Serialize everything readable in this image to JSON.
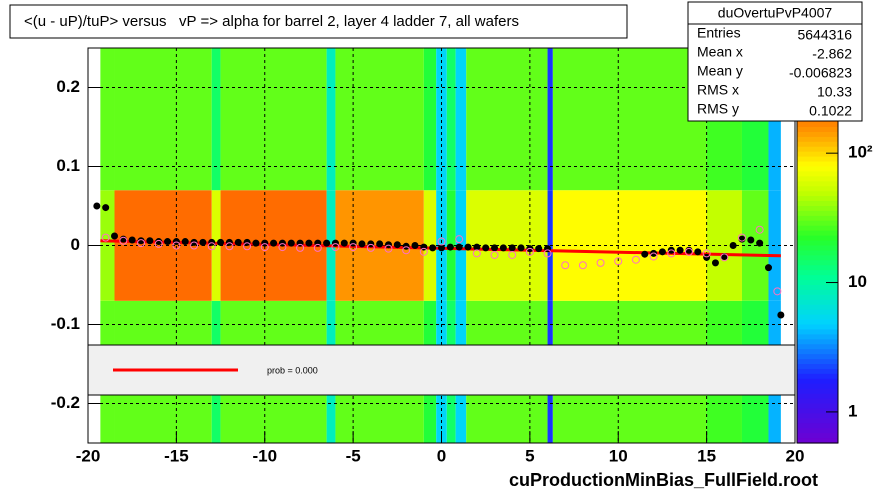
{
  "chart_data": {
    "type": "heatmap",
    "title": "<(u - uP)/tuP> versus   vP => alpha for barrel 2, layer 4 ladder 7, all wafers",
    "x_label": "cuProductionMinBias_FullField.root",
    "xlim": [
      -20,
      20
    ],
    "ylim": [
      -0.25,
      0.25
    ],
    "xticks": [
      -20,
      -15,
      -10,
      -5,
      0,
      5,
      10,
      15,
      20
    ],
    "yticks": [
      -0.2,
      -0.1,
      0,
      0.1,
      0.2
    ],
    "grid": true,
    "heatmap": {
      "x_edges": [
        -19.3,
        -18.5,
        -13,
        -12.5,
        -6.5,
        -6,
        -1,
        -0.3,
        0.3,
        0.8,
        1.4,
        6,
        6.3,
        15,
        17,
        18.5,
        19.2
      ],
      "y_edges": [
        -0.25,
        -0.07,
        0.07,
        0.25
      ],
      "counts": [
        [
          30,
          40,
          30
        ],
        [
          30,
          200,
          30
        ],
        [
          15,
          60,
          15
        ],
        [
          30,
          200,
          30
        ],
        [
          8,
          8,
          8
        ],
        [
          30,
          150,
          30
        ],
        [
          20,
          60,
          20
        ],
        [
          5,
          5,
          5
        ],
        [
          15,
          20,
          15
        ],
        [
          5,
          5,
          5
        ],
        [
          30,
          60,
          30
        ],
        [
          2,
          2,
          2
        ],
        [
          30,
          80,
          30
        ],
        [
          25,
          50,
          25
        ],
        [
          20,
          30,
          20
        ],
        [
          4,
          4,
          4
        ]
      ]
    },
    "zlim": [
      0.575,
      650
    ],
    "zlog": true,
    "zticks": [
      1,
      10,
      {
        "value": 100,
        "label": "10²"
      }
    ],
    "series": [
      {
        "color": "#000000",
        "marker": "filled",
        "x": [
          -19.5,
          -19,
          -18.5,
          -18,
          -17.5,
          -17,
          -16.5,
          -16,
          -15.5,
          -15,
          -14.5,
          -14,
          -13.5,
          -13,
          -12.5,
          -12,
          -11.5,
          -11,
          -10.5,
          -10,
          -9.5,
          -9,
          -8.5,
          -8,
          -7.5,
          -7,
          -6.5,
          -6,
          -5.5,
          -5,
          -4.5,
          -4,
          -3.5,
          -3,
          -2.5,
          -2,
          -1.5,
          -1,
          -0.5,
          0,
          0.5,
          1,
          1.5,
          2,
          2.5,
          3,
          3.5,
          4,
          4.5,
          5,
          5.5,
          6,
          11.5,
          12,
          12.5,
          13,
          13.5,
          14,
          14.5,
          15,
          15.5,
          16,
          16.5,
          17,
          17.5,
          18,
          18.5,
          19.2
        ],
        "values": [
          0.05,
          0.048,
          0.012,
          0.008,
          0.007,
          0.006,
          0.006,
          0.005,
          0.005,
          0.005,
          0.005,
          0.004,
          0.004,
          0.004,
          0.004,
          0.004,
          0.004,
          0.004,
          0.003,
          0.003,
          0.003,
          0.003,
          0.003,
          0.003,
          0.003,
          0.003,
          0.003,
          0.003,
          0.003,
          0.003,
          0.002,
          0.002,
          0.002,
          0.001,
          0.001,
          -0.001,
          0.0,
          -0.002,
          -0.003,
          -0.003,
          -0.002,
          -0.002,
          -0.002,
          -0.002,
          -0.003,
          -0.003,
          -0.003,
          -0.003,
          -0.003,
          -0.004,
          -0.004,
          -0.004,
          -0.011,
          -0.01,
          -0.008,
          -0.006,
          -0.006,
          -0.006,
          -0.008,
          -0.015,
          -0.022,
          -0.014,
          0.0,
          0.008,
          0.007,
          0.003,
          -0.028,
          -0.088
        ]
      },
      {
        "color": "#ff70c0",
        "marker": "open",
        "x": [
          -19,
          -18,
          -17,
          -16,
          -15,
          -14,
          -13,
          -12,
          -11,
          -10,
          -9,
          -8,
          -7,
          -6,
          -5,
          -4,
          -3,
          -2,
          -1,
          0,
          1,
          2,
          3,
          4,
          5,
          6,
          7,
          8,
          9,
          10,
          11,
          12,
          13,
          14,
          15,
          16,
          17,
          18,
          19
        ],
        "values": [
          0.01,
          0.006,
          0.003,
          0.002,
          0.0,
          0.0,
          -0.001,
          -0.001,
          -0.001,
          -0.002,
          -0.002,
          -0.003,
          -0.003,
          -0.002,
          -0.002,
          -0.003,
          -0.004,
          -0.006,
          -0.008,
          0.005,
          0.008,
          -0.01,
          -0.012,
          -0.012,
          -0.008,
          -0.01,
          -0.025,
          -0.025,
          -0.022,
          -0.02,
          -0.018,
          -0.014,
          -0.01,
          -0.008,
          -0.01,
          -0.015,
          0.01,
          0.02,
          -0.058
        ]
      }
    ],
    "fit": {
      "color": "#ff0000",
      "x": [
        -19.3,
        19.2
      ],
      "values": [
        0.006,
        -0.013
      ]
    },
    "legend": {
      "text": "prob = 0.000"
    },
    "stats": {
      "title": "duOvertuPvP4007",
      "rows": [
        [
          "Entries",
          "5644316"
        ],
        [
          "Mean x",
          "-2.862"
        ],
        [
          "Mean y",
          "-0.006823"
        ],
        [
          "RMS x",
          "10.33"
        ],
        [
          "RMS y",
          "0.1022"
        ]
      ]
    }
  }
}
